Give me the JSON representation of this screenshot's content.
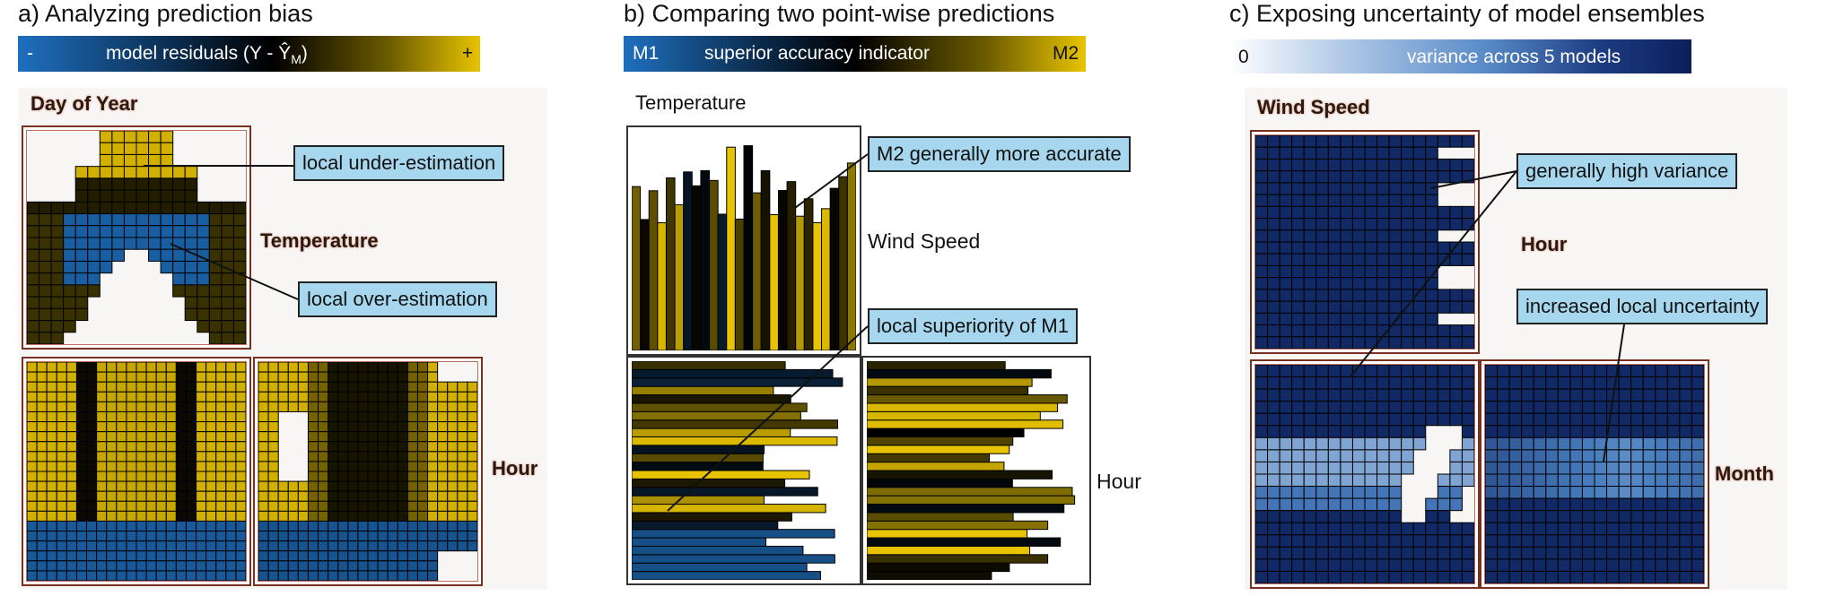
{
  "panel_a": {
    "title": "a) Analyzing prediction bias",
    "colorbar": {
      "left": "-",
      "center": "model residuals (Y - Ŷ",
      "sub": "M",
      "close": ")",
      "right": "+",
      "colors": [
        "#1f6fbf",
        "#000000",
        "#e8c400"
      ]
    },
    "axis_labels": {
      "day_of_year": "Day of Year",
      "temperature": "Temperature",
      "hour": "Hour"
    },
    "callouts": {
      "under": "local under-estimation",
      "over": "local over-estimation"
    }
  },
  "panel_b": {
    "title": "b) Comparing two point-wise predictions",
    "colorbar": {
      "left": "M1",
      "center": "superior accuracy indicator",
      "right": "M2",
      "colors": [
        "#1f6fbf",
        "#000000",
        "#e8c400"
      ]
    },
    "axis_labels": {
      "temperature": "Temperature",
      "wind_speed": "Wind Speed",
      "hour": "Hour"
    },
    "callouts": {
      "m2": "M2 generally more accurate",
      "m1": "local superiority of M1"
    }
  },
  "panel_c": {
    "title": "c) Exposing uncertainty of model ensembles",
    "colorbar": {
      "left": "0",
      "center": "variance across 5 models",
      "colors": [
        "#ffffff",
        "#4a7fc0",
        "#0b1f5a"
      ]
    },
    "axis_labels": {
      "wind_speed": "Wind Speed",
      "hour": "Hour",
      "month": "Month"
    },
    "callouts": {
      "high": "generally high variance",
      "local": "increased local uncertainty"
    }
  },
  "chart_data": [
    {
      "type": "heatmap",
      "title": "a) Analyzing prediction bias",
      "matrix": [
        "day_of_year x temperature",
        "day_of_year x hour",
        "temperature x hour"
      ],
      "value": "model residuals (Y - Ŷ_M)",
      "scale": [
        "-",
        "+"
      ]
    },
    {
      "type": "heatmap",
      "title": "b) Comparing two point-wise predictions",
      "matrix": [
        "temperature x wind_speed",
        "temperature x hour",
        "wind_speed x hour"
      ],
      "value": "superior accuracy indicator",
      "scale": [
        "M1",
        "M2"
      ]
    },
    {
      "type": "heatmap",
      "title": "c) Exposing uncertainty of model ensembles",
      "matrix": [
        "wind_speed x hour",
        "wind_speed x month",
        "hour x month"
      ],
      "value": "variance across 5 models",
      "scale": [
        "0",
        ""
      ]
    }
  ]
}
